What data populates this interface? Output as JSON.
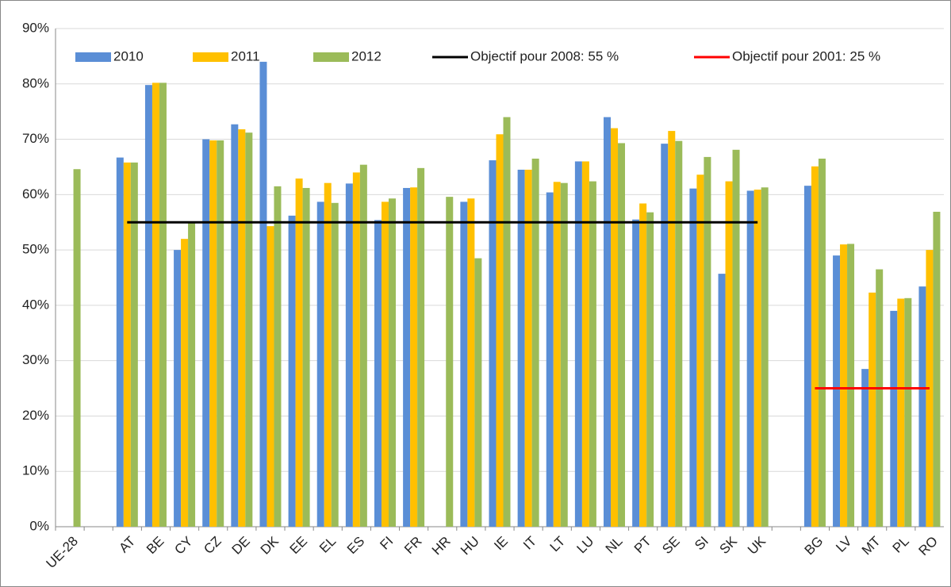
{
  "chart_data": {
    "type": "bar",
    "categories": [
      "UE-28",
      null,
      "AT",
      "BE",
      "CY",
      "CZ",
      "DE",
      "DK",
      "EE",
      "EL",
      "ES",
      "FI",
      "FR",
      "HR",
      "HU",
      "IE",
      "IT",
      "LT",
      "LU",
      "NL",
      "PT",
      "SE",
      "SI",
      "SK",
      "UK",
      null,
      "BG",
      "LV",
      "MT",
      "PL",
      "RO"
    ],
    "series": [
      {
        "name": "2010",
        "color": "#5a8ed6",
        "values": [
          null,
          null,
          66.7,
          79.8,
          50.0,
          70.0,
          72.7,
          84.0,
          56.2,
          58.7,
          62.0,
          55.4,
          61.2,
          null,
          58.7,
          66.2,
          64.5,
          60.4,
          66.0,
          74.0,
          55.5,
          69.2,
          61.1,
          45.7,
          60.7,
          null,
          61.6,
          49.0,
          28.5,
          39.0,
          43.4
        ]
      },
      {
        "name": "2011",
        "color": "#ffc000",
        "values": [
          null,
          null,
          65.8,
          80.2,
          52.0,
          69.8,
          71.8,
          54.3,
          62.9,
          62.1,
          64.0,
          58.7,
          61.3,
          null,
          59.3,
          70.9,
          64.5,
          62.3,
          66.0,
          72.0,
          58.4,
          71.5,
          63.6,
          62.4,
          60.9,
          null,
          65.1,
          51.0,
          42.3,
          41.2,
          50.0
        ]
      },
      {
        "name": "2012",
        "color": "#9bbb59",
        "values": [
          64.6,
          null,
          65.8,
          80.2,
          55.0,
          69.8,
          71.2,
          61.5,
          61.2,
          58.5,
          65.4,
          59.3,
          64.8,
          59.6,
          48.5,
          74.0,
          66.5,
          62.1,
          62.4,
          69.3,
          56.8,
          69.7,
          66.8,
          68.1,
          61.3,
          null,
          66.5,
          51.1,
          46.5,
          41.3,
          56.9
        ]
      },
      {
        "name": "Objectif pour 2008: 55 %",
        "color": "#000000",
        "type": "line",
        "values": [
          null,
          null,
          55,
          55,
          55,
          55,
          55,
          55,
          55,
          55,
          55,
          55,
          55,
          55,
          55,
          55,
          55,
          55,
          55,
          55,
          55,
          55,
          55,
          55,
          55,
          null,
          null,
          null,
          null,
          null,
          null
        ]
      },
      {
        "name": "Objectif pour 2001: 25 %",
        "color": "#ff0000",
        "type": "line",
        "values": [
          null,
          null,
          null,
          null,
          null,
          null,
          null,
          null,
          null,
          null,
          null,
          null,
          null,
          null,
          null,
          null,
          null,
          null,
          null,
          null,
          null,
          null,
          null,
          null,
          null,
          null,
          25,
          25,
          25,
          25,
          25
        ]
      }
    ],
    "ylim": [
      0,
      90
    ],
    "yticks": [
      {
        "value": 0,
        "label": "0%"
      },
      {
        "value": 10,
        "label": "10%"
      },
      {
        "value": 20,
        "label": "20%"
      },
      {
        "value": 30,
        "label": "30%"
      },
      {
        "value": 40,
        "label": "40%"
      },
      {
        "value": 50,
        "label": "50%"
      },
      {
        "value": 60,
        "label": "60%"
      },
      {
        "value": 70,
        "label": "70%"
      },
      {
        "value": 80,
        "label": "80%"
      },
      {
        "value": 90,
        "label": "90%"
      }
    ],
    "grid": true,
    "legend": "top"
  }
}
